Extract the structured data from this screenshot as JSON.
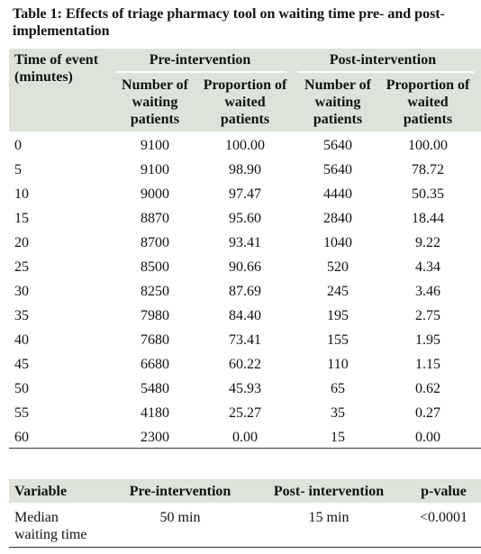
{
  "title": "Table 1: Effects of triage pharmacy tool on waiting time pre- and post-implementation",
  "table": {
    "header": {
      "time": "Time of event (minutes)",
      "groups": [
        "Pre-intervention",
        "Post-intervention"
      ],
      "columns": [
        "Number of waiting patients",
        "Proportion of waited patients",
        "Number of waiting patients",
        "Proportion of waited patients"
      ]
    },
    "rows": [
      [
        "0",
        "9100",
        "100.00",
        "5640",
        "100.00"
      ],
      [
        "5",
        "9100",
        "98.90",
        "5640",
        "78.72"
      ],
      [
        "10",
        "9000",
        "97.47",
        "4440",
        "50.35"
      ],
      [
        "15",
        "8870",
        "95.60",
        "2840",
        "18.44"
      ],
      [
        "20",
        "8700",
        "93.41",
        "1040",
        "9.22"
      ],
      [
        "25",
        "8500",
        "90.66",
        "520",
        "4.34"
      ],
      [
        "30",
        "8250",
        "87.69",
        "245",
        "3.46"
      ],
      [
        "35",
        "7980",
        "84.40",
        "195",
        "2.75"
      ],
      [
        "40",
        "7680",
        "73.41",
        "155",
        "1.95"
      ],
      [
        "45",
        "6680",
        "60.22",
        "110",
        "1.15"
      ],
      [
        "50",
        "5480",
        "45.93",
        "65",
        "0.62"
      ],
      [
        "55",
        "4180",
        "25.27",
        "35",
        "0.27"
      ],
      [
        "60",
        "2300",
        "0.00",
        "15",
        "0.00"
      ]
    ]
  },
  "summary": {
    "header": [
      "Variable",
      "Pre-intervention",
      "Post- intervention",
      "p-value"
    ],
    "rows": [
      [
        "Median waiting time",
        "50 min",
        "15 min",
        "<0.0001"
      ]
    ]
  }
}
